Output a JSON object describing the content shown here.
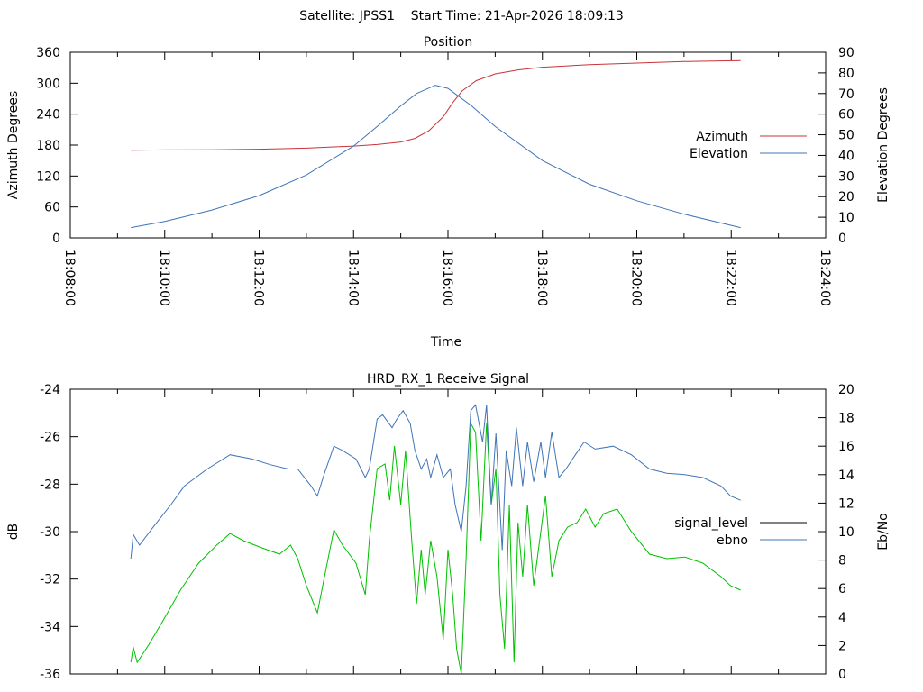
{
  "title": "Satellite: JPSS1    Start Time: 21-Apr-2026 18:09:13",
  "chart_data": [
    {
      "type": "line",
      "title": "Position",
      "xlabel": "Time",
      "ylabel": "Azimuth Degrees",
      "y2label": "Elevation Degrees",
      "xlim": [
        "18:08:00",
        "18:24:00"
      ],
      "xticks": [
        "18:08:00",
        "18:10:00",
        "18:12:00",
        "18:14:00",
        "18:16:00",
        "18:18:00",
        "18:20:00",
        "18:22:00",
        "18:24:00"
      ],
      "ylim": [
        0,
        360
      ],
      "yticks": [
        "0",
        "60",
        "120",
        "180",
        "240",
        "300",
        "360"
      ],
      "y2lim": [
        0,
        90
      ],
      "y2ticks": [
        "0",
        "10",
        "20",
        "30",
        "40",
        "50",
        "60",
        "70",
        "80",
        "90"
      ],
      "grid": false,
      "legend": "right",
      "series": [
        {
          "name": "Azimuth",
          "axis": "y",
          "color": "#c8333a",
          "x": [
            "18:09:17",
            "18:10:00",
            "18:11:00",
            "18:12:00",
            "18:13:00",
            "18:14:00",
            "18:14:30",
            "18:15:00",
            "18:15:18",
            "18:15:36",
            "18:15:54",
            "18:16:06",
            "18:16:18",
            "18:16:36",
            "18:17:00",
            "18:17:30",
            "18:18:00",
            "18:19:00",
            "18:20:00",
            "18:21:00",
            "18:22:12"
          ],
          "y": [
            170,
            170.5,
            171,
            172,
            174,
            178,
            181,
            186,
            193,
            208,
            235,
            262,
            285,
            305,
            318,
            326,
            331,
            336,
            339,
            342,
            344
          ]
        },
        {
          "name": "Elevation",
          "axis": "y2",
          "color": "#3f74b8",
          "x": [
            "18:09:17",
            "18:10:00",
            "18:11:00",
            "18:12:00",
            "18:13:00",
            "18:14:00",
            "18:14:30",
            "18:15:00",
            "18:15:20",
            "18:15:44",
            "18:16:00",
            "18:16:30",
            "18:17:00",
            "18:18:00",
            "18:19:00",
            "18:20:00",
            "18:21:00",
            "18:22:12"
          ],
          "y": [
            5,
            8,
            13.5,
            20.5,
            30.5,
            44.5,
            54,
            64,
            70,
            74,
            72.5,
            64,
            54,
            37.5,
            26,
            18,
            11.5,
            5
          ]
        }
      ]
    },
    {
      "type": "line",
      "title": "HRD_RX_1 Receive Signal",
      "ylabel": "dB",
      "y2label": "Eb/No",
      "xlim": [
        "18:08:00",
        "18:24:00"
      ],
      "ylim": [
        -36,
        -24
      ],
      "yticks": [
        "-36",
        "-34",
        "-32",
        "-30",
        "-28",
        "-26",
        "-24"
      ],
      "y2lim": [
        0,
        20
      ],
      "y2ticks": [
        "0",
        "2",
        "4",
        "6",
        "8",
        "10",
        "12",
        "14",
        "16",
        "18",
        "20"
      ],
      "grid": false,
      "legend": "right",
      "series": [
        {
          "name": "signal_level",
          "axis": "y",
          "color": "#000000",
          "line_color": "#00c000",
          "x": [
            "18:09:17",
            "18:09:20",
            "18:09:25",
            "18:09:40",
            "18:09:57",
            "18:10:20",
            "18:10:43",
            "18:11:06",
            "18:11:23",
            "18:11:40",
            "18:12:03",
            "18:12:26",
            "18:12:40",
            "18:12:49",
            "18:13:00",
            "18:13:14",
            "18:13:23",
            "18:13:35",
            "18:13:46",
            "18:14:03",
            "18:14:15",
            "18:14:20",
            "18:14:30",
            "18:14:40",
            "18:14:46",
            "18:14:52",
            "18:15:00",
            "18:15:06",
            "18:15:14",
            "18:15:20",
            "18:15:26",
            "18:15:31",
            "18:15:38",
            "18:15:46",
            "18:15:54",
            "18:16:00",
            "18:16:06",
            "18:16:11",
            "18:16:17",
            "18:16:23",
            "18:16:29",
            "18:16:35",
            "18:16:42",
            "18:16:49",
            "18:16:55",
            "18:17:01",
            "18:17:06",
            "18:17:12",
            "18:17:18",
            "18:17:24",
            "18:17:29",
            "18:17:35",
            "18:17:41",
            "18:17:49",
            "18:17:58",
            "18:18:04",
            "18:18:12",
            "18:18:21",
            "18:18:32",
            "18:18:44",
            "18:18:55",
            "18:19:07",
            "18:19:18",
            "18:19:35",
            "18:19:53",
            "18:20:16",
            "18:20:38",
            "18:21:01",
            "18:21:24",
            "18:21:47",
            "18:21:59",
            "18:22:12"
          ],
          "y": [
            -35.51,
            -34.86,
            -35.51,
            -34.75,
            -33.8,
            -32.47,
            -31.33,
            -30.57,
            -30.08,
            -30.38,
            -30.68,
            -30.95,
            -30.57,
            -31.14,
            -32.28,
            -33.42,
            -31.9,
            -29.92,
            -30.57,
            -31.33,
            -32.66,
            -30.38,
            -27.34,
            -27.15,
            -28.67,
            -26.39,
            -28.86,
            -26.58,
            -30.38,
            -33.04,
            -30.76,
            -32.66,
            -30.38,
            -31.9,
            -34.56,
            -30.76,
            -32.66,
            -34.94,
            -36,
            -31.14,
            -25.44,
            -25.82,
            -30.38,
            -25.44,
            -28.86,
            -27.34,
            -32.66,
            -34.94,
            -28.86,
            -35.51,
            -29.62,
            -31.9,
            -28.86,
            -32.28,
            -30.0,
            -28.48,
            -31.9,
            -30.38,
            -29.81,
            -29.62,
            -29.05,
            -29.81,
            -29.24,
            -29.05,
            -30.0,
            -30.95,
            -31.14,
            -31.07,
            -31.33,
            -31.9,
            -32.28,
            -32.47
          ]
        },
        {
          "name": "ebno",
          "axis": "y2",
          "color": "#3f74b8",
          "x": [
            "18:09:17",
            "18:09:20",
            "18:09:28",
            "18:09:45",
            "18:10:08",
            "18:10:25",
            "18:10:54",
            "18:11:23",
            "18:11:51",
            "18:12:14",
            "18:12:37",
            "18:12:49",
            "18:13:06",
            "18:13:14",
            "18:13:23",
            "18:13:35",
            "18:13:46",
            "18:14:03",
            "18:14:15",
            "18:14:20",
            "18:14:30",
            "18:14:37",
            "18:14:49",
            "18:14:55",
            "18:15:03",
            "18:15:12",
            "18:15:18",
            "18:15:26",
            "18:15:33",
            "18:15:38",
            "18:15:46",
            "18:15:54",
            "18:16:03",
            "18:16:09",
            "18:16:17",
            "18:16:23",
            "18:16:29",
            "18:16:35",
            "18:16:44",
            "18:16:49",
            "18:16:55",
            "18:17:01",
            "18:17:09",
            "18:17:14",
            "18:17:21",
            "18:17:27",
            "18:17:35",
            "18:17:41",
            "18:17:49",
            "18:17:58",
            "18:18:04",
            "18:18:12",
            "18:18:21",
            "18:18:30",
            "18:18:42",
            "18:18:53",
            "18:19:07",
            "18:19:30",
            "18:19:53",
            "18:20:16",
            "18:20:38",
            "18:21:01",
            "18:21:24",
            "18:21:47",
            "18:21:59",
            "18:22:12"
          ],
          "y": [
            8.1,
            9.8,
            9.05,
            10.3,
            11.9,
            13.2,
            14.4,
            15.4,
            15.1,
            14.7,
            14.4,
            14.4,
            13.2,
            12.5,
            14.1,
            16.0,
            15.7,
            15.1,
            13.8,
            14.4,
            17.9,
            18.2,
            17.3,
            17.9,
            18.5,
            17.6,
            15.7,
            14.4,
            15.1,
            13.8,
            15.4,
            13.8,
            14.4,
            11.9,
            10.0,
            13.2,
            18.5,
            18.9,
            16.3,
            18.9,
            11.9,
            16.9,
            8.7,
            15.7,
            13.2,
            17.3,
            13.2,
            16.3,
            13.5,
            16.3,
            13.8,
            17.0,
            13.8,
            14.4,
            15.4,
            16.3,
            15.8,
            16.0,
            15.4,
            14.4,
            14.1,
            14.0,
            13.8,
            13.2,
            12.5,
            12.2
          ]
        }
      ]
    }
  ]
}
